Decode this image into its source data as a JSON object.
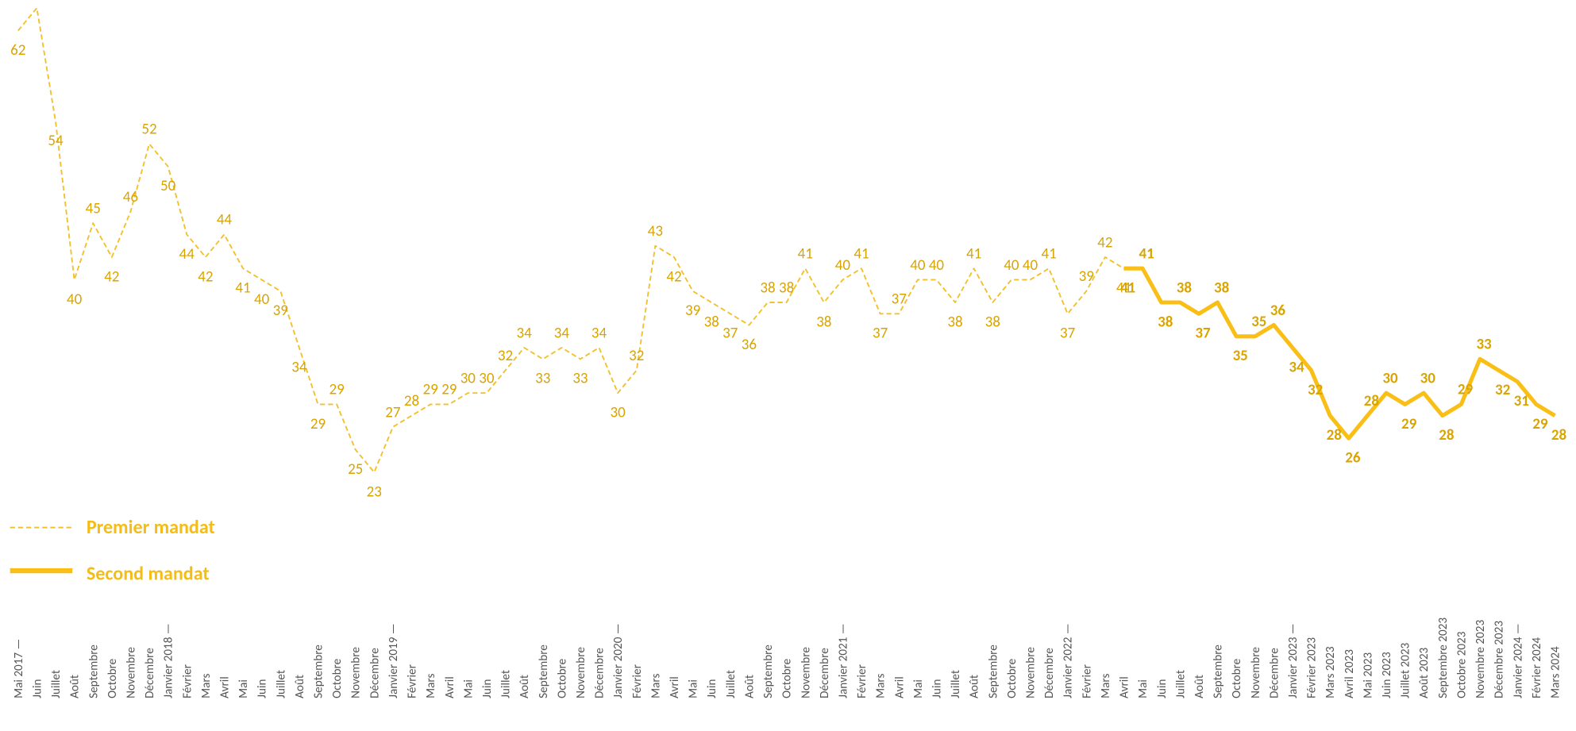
{
  "chart_data": {
    "type": "line",
    "categories": [
      "Mai 2017 —",
      "Juin",
      "Juillet",
      "Août",
      "Septembre",
      "Octobre",
      "Novembre",
      "Décembre",
      "Janvier 2018 —",
      "Février",
      "Mars",
      "Avril",
      "Mai",
      "Juin",
      "Juillet",
      "Août",
      "Septembre",
      "Octobre",
      "Novembre",
      "Décembre",
      "Janvier 2019 —",
      "Février",
      "Mars",
      "Avril",
      "Mai",
      "Juin",
      "Juillet",
      "Août",
      "Septembre",
      "Octobre",
      "Novembre",
      "Décembre",
      "Janvier 2020 —",
      "Février",
      "Mars",
      "Avril",
      "Mai",
      "Juin",
      "Juillet",
      "Août",
      "Septembre",
      "Octobre",
      "Novembre",
      "Décembre",
      "Janvier 2021 —",
      "Février",
      "Mars",
      "Avril",
      "Mai",
      "Juin",
      "Juillet",
      "Août",
      "Septembre",
      "Octobre",
      "Novembre",
      "Décembre",
      "Janvier 2022 —",
      "Février",
      "Mars",
      "Avril",
      "Mai",
      "Juin",
      "Juillet",
      "Août",
      "Septembre",
      "Octobre",
      "Novembre",
      "Décembre",
      "Janvier 2023 —",
      "Février 2023",
      "Mars 2023",
      "Avril 2023",
      "Mai 2023",
      "Juin 2023",
      "Juillet 2023",
      "Août 2023",
      "Septembre 2023",
      "Octobre 2023",
      "Novembre 2023",
      "Décembre 2023",
      "Janvier 2024 —",
      "Février 2024",
      "Mars 2024"
    ],
    "series": [
      {
        "name": "Premier mandat",
        "color": "#f2c12e",
        "dashed": true,
        "values": [
          62,
          64,
          54,
          40,
          45,
          42,
          46,
          52,
          50,
          44,
          42,
          44,
          41,
          40,
          39,
          34,
          29,
          29,
          25,
          23,
          27,
          28,
          29,
          29,
          30,
          30,
          32,
          34,
          33,
          34,
          33,
          34,
          30,
          32,
          43,
          42,
          39,
          38,
          37,
          36,
          38,
          38,
          41,
          38,
          40,
          41,
          37,
          37,
          40,
          40,
          38,
          41,
          38,
          40,
          40,
          41,
          37,
          39,
          42,
          41,
          null,
          null,
          null,
          null,
          null,
          null,
          null,
          null,
          null,
          null,
          null,
          null,
          null,
          null,
          null,
          null,
          null,
          null,
          null,
          null,
          null,
          null,
          null
        ]
      },
      {
        "name": "Second mandat",
        "color": "#f9bf17",
        "dashed": false,
        "values": [
          null,
          null,
          null,
          null,
          null,
          null,
          null,
          null,
          null,
          null,
          null,
          null,
          null,
          null,
          null,
          null,
          null,
          null,
          null,
          null,
          null,
          null,
          null,
          null,
          null,
          null,
          null,
          null,
          null,
          null,
          null,
          null,
          null,
          null,
          null,
          null,
          null,
          null,
          null,
          null,
          null,
          null,
          null,
          null,
          null,
          null,
          null,
          null,
          null,
          null,
          null,
          null,
          null,
          null,
          null,
          null,
          null,
          null,
          null,
          41,
          41,
          38,
          38,
          37,
          38,
          35,
          35,
          36,
          34,
          32,
          28,
          26,
          28,
          30,
          29,
          30,
          28,
          29,
          33,
          32,
          31,
          29,
          28
        ]
      }
    ],
    "ylim": [
      20,
      65
    ]
  }
}
